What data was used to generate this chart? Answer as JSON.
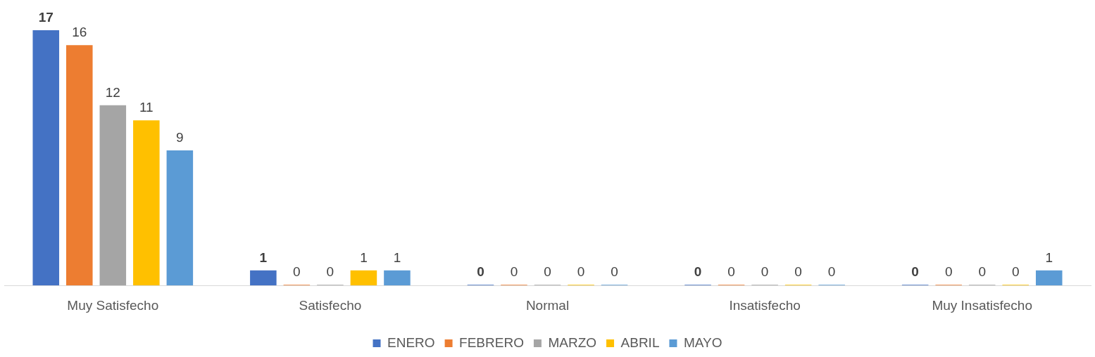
{
  "chart_data": {
    "type": "bar",
    "categories": [
      "Muy Satisfecho",
      "Satisfecho",
      "Normal",
      "Insatisfecho",
      "Muy Insatisfecho"
    ],
    "series": [
      {
        "name": "ENERO",
        "color": "#4472c4",
        "values": [
          17,
          1,
          0,
          0,
          0
        ]
      },
      {
        "name": "FEBRERO",
        "color": "#ed7d31",
        "values": [
          16,
          0,
          0,
          0,
          0
        ]
      },
      {
        "name": "MARZO",
        "color": "#a5a5a5",
        "values": [
          12,
          0,
          0,
          0,
          0
        ]
      },
      {
        "name": "ABRIL",
        "color": "#ffc000",
        "values": [
          11,
          1,
          0,
          0,
          0
        ]
      },
      {
        "name": "MAYO",
        "color": "#5b9bd5",
        "values": [
          9,
          1,
          0,
          0,
          1
        ]
      }
    ],
    "data_labels": true,
    "legend": "bottom",
    "grid": false
  }
}
